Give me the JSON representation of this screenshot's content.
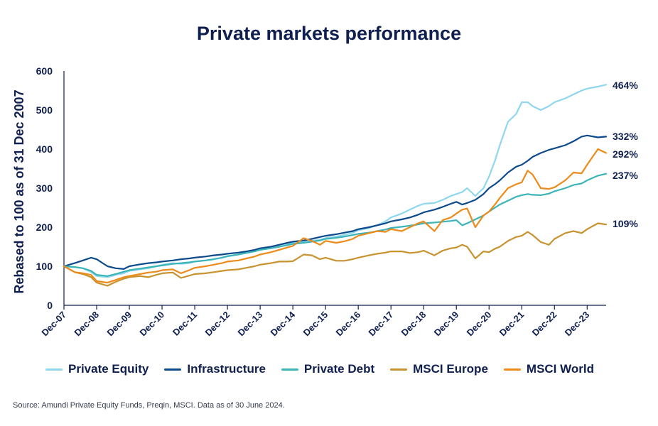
{
  "title": "Private markets performance",
  "source": "Source: Amundi Private Equity Funds, Preqin, MSCI. Data as of 30 June 2024.",
  "chart_data": {
    "type": "line",
    "title": "Private markets performance",
    "xlabel": "",
    "ylabel": "Rebased to 100 as of 31 Dec 2007",
    "ylim": [
      0,
      600
    ],
    "yticks": [
      "0",
      "100",
      "200",
      "300",
      "400",
      "500",
      "600"
    ],
    "x_start": 2007.92,
    "x_end": 2024.5,
    "x_ticks": [
      {
        "label": "Dec-07",
        "x": 2007.92
      },
      {
        "label": "Dec-08",
        "x": 2008.92
      },
      {
        "label": "Dec-09",
        "x": 2009.92
      },
      {
        "label": "Dec-10",
        "x": 2010.92
      },
      {
        "label": "Dec-11",
        "x": 2011.92
      },
      {
        "label": "Dec-12",
        "x": 2012.92
      },
      {
        "label": "Dec-13",
        "x": 2013.92
      },
      {
        "label": "Dec-14",
        "x": 2014.92
      },
      {
        "label": "Dec-15",
        "x": 2015.92
      },
      {
        "label": "Dec-16",
        "x": 2016.92
      },
      {
        "label": "Dec-17",
        "x": 2017.92
      },
      {
        "label": "Dec-18",
        "x": 2018.92
      },
      {
        "label": "Dec-19",
        "x": 2019.92
      },
      {
        "label": "Dec-20",
        "x": 2020.92
      },
      {
        "label": "Dec-21",
        "x": 2021.92
      },
      {
        "label": "Dec-22",
        "x": 2022.92
      },
      {
        "label": "Dec-23",
        "x": 2023.92
      }
    ],
    "series": [
      {
        "name": "Private Equity",
        "color": "#8fd6ee",
        "end_label": "464%",
        "x": [
          2007.92,
          2008.25,
          2008.5,
          2008.75,
          2008.92,
          2009.25,
          2009.5,
          2009.75,
          2009.92,
          2010.25,
          2010.5,
          2010.75,
          2010.92,
          2011.25,
          2011.5,
          2011.75,
          2011.92,
          2012.25,
          2012.5,
          2012.75,
          2012.92,
          2013.25,
          2013.5,
          2013.75,
          2013.92,
          2014.25,
          2014.5,
          2014.75,
          2014.92,
          2015.25,
          2015.5,
          2015.75,
          2015.92,
          2016.25,
          2016.5,
          2016.75,
          2016.92,
          2017.25,
          2017.5,
          2017.75,
          2017.92,
          2018.25,
          2018.5,
          2018.75,
          2018.92,
          2019.25,
          2019.5,
          2019.75,
          2019.92,
          2020.1,
          2020.25,
          2020.5,
          2020.75,
          2020.92,
          2021.1,
          2021.25,
          2021.5,
          2021.75,
          2021.92,
          2022.1,
          2022.25,
          2022.5,
          2022.75,
          2022.92,
          2023.25,
          2023.5,
          2023.75,
          2023.92,
          2024.25,
          2024.5
        ],
        "values": [
          100,
          98,
          95,
          85,
          75,
          72,
          78,
          82,
          88,
          92,
          95,
          100,
          104,
          108,
          106,
          108,
          112,
          115,
          118,
          122,
          125,
          130,
          135,
          140,
          145,
          150,
          155,
          158,
          160,
          162,
          165,
          168,
          172,
          176,
          180,
          186,
          192,
          198,
          205,
          215,
          225,
          235,
          245,
          255,
          260,
          262,
          270,
          280,
          285,
          290,
          300,
          280,
          300,
          330,
          370,
          410,
          470,
          490,
          520,
          520,
          510,
          500,
          510,
          520,
          530,
          540,
          550,
          555,
          560,
          565
        ],
        "values_note": "Rebased index, read from chart"
      },
      {
        "name": "Infrastructure",
        "color": "#0d4a8c",
        "end_label": "332%",
        "x": [
          2007.92,
          2008.25,
          2008.5,
          2008.75,
          2008.92,
          2009.25,
          2009.5,
          2009.75,
          2009.92,
          2010.25,
          2010.5,
          2010.75,
          2010.92,
          2011.25,
          2011.5,
          2011.75,
          2011.92,
          2012.25,
          2012.5,
          2012.75,
          2012.92,
          2013.25,
          2013.5,
          2013.75,
          2013.92,
          2014.25,
          2014.5,
          2014.75,
          2014.92,
          2015.25,
          2015.5,
          2015.75,
          2015.92,
          2016.25,
          2016.5,
          2016.75,
          2016.92,
          2017.25,
          2017.5,
          2017.75,
          2017.92,
          2018.25,
          2018.5,
          2018.75,
          2018.92,
          2019.25,
          2019.5,
          2019.75,
          2019.92,
          2020.1,
          2020.25,
          2020.5,
          2020.75,
          2020.92,
          2021.1,
          2021.25,
          2021.5,
          2021.75,
          2021.92,
          2022.1,
          2022.25,
          2022.5,
          2022.75,
          2022.92,
          2023.25,
          2023.5,
          2023.75,
          2023.92,
          2024.25,
          2024.5
        ],
        "values": [
          100,
          108,
          115,
          122,
          118,
          100,
          95,
          93,
          100,
          105,
          108,
          110,
          112,
          115,
          118,
          120,
          122,
          125,
          128,
          130,
          132,
          135,
          138,
          142,
          146,
          150,
          155,
          160,
          163,
          166,
          170,
          175,
          178,
          182,
          186,
          190,
          195,
          200,
          205,
          210,
          215,
          220,
          225,
          232,
          238,
          245,
          252,
          260,
          265,
          258,
          262,
          270,
          285,
          300,
          310,
          320,
          340,
          355,
          360,
          370,
          380,
          390,
          398,
          402,
          410,
          420,
          432,
          435,
          430,
          432
        ],
        "values_note": "Rebased index, read from chart"
      },
      {
        "name": "Private Debt",
        "color": "#3bb4b8",
        "end_label": "237%",
        "x": [
          2007.92,
          2008.25,
          2008.5,
          2008.75,
          2008.92,
          2009.25,
          2009.5,
          2009.75,
          2009.92,
          2010.25,
          2010.5,
          2010.75,
          2010.92,
          2011.25,
          2011.5,
          2011.75,
          2011.92,
          2012.25,
          2012.5,
          2012.75,
          2012.92,
          2013.25,
          2013.5,
          2013.75,
          2013.92,
          2014.25,
          2014.5,
          2014.75,
          2014.92,
          2015.25,
          2015.5,
          2015.75,
          2015.92,
          2016.25,
          2016.5,
          2016.75,
          2016.92,
          2017.25,
          2017.5,
          2017.75,
          2017.92,
          2018.25,
          2018.5,
          2018.75,
          2018.92,
          2019.25,
          2019.5,
          2019.75,
          2019.92,
          2020.1,
          2020.25,
          2020.5,
          2020.75,
          2020.92,
          2021.1,
          2021.25,
          2021.5,
          2021.75,
          2021.92,
          2022.1,
          2022.25,
          2022.5,
          2022.75,
          2022.92,
          2023.25,
          2023.5,
          2023.75,
          2023.92,
          2024.25,
          2024.5
        ],
        "values": [
          100,
          98,
          95,
          88,
          78,
          75,
          80,
          86,
          90,
          94,
          97,
          100,
          102,
          106,
          108,
          110,
          112,
          115,
          118,
          122,
          126,
          130,
          134,
          138,
          142,
          146,
          150,
          154,
          157,
          160,
          163,
          166,
          170,
          173,
          176,
          180,
          183,
          186,
          190,
          194,
          198,
          201,
          204,
          207,
          210,
          212,
          214,
          216,
          218,
          205,
          210,
          220,
          230,
          240,
          250,
          258,
          268,
          278,
          282,
          285,
          283,
          282,
          286,
          292,
          300,
          308,
          312,
          320,
          332,
          337
        ],
        "values_note": "Rebased index, read from chart"
      },
      {
        "name": "MSCI Europe",
        "color": "#c8922e",
        "end_label": "109%",
        "x": [
          2007.92,
          2008.25,
          2008.5,
          2008.75,
          2008.92,
          2009.25,
          2009.5,
          2009.75,
          2009.92,
          2010.25,
          2010.5,
          2010.75,
          2010.92,
          2011.25,
          2011.5,
          2011.75,
          2011.92,
          2012.25,
          2012.5,
          2012.75,
          2012.92,
          2013.25,
          2013.5,
          2013.75,
          2013.92,
          2014.25,
          2014.5,
          2014.75,
          2014.92,
          2015.25,
          2015.5,
          2015.75,
          2015.92,
          2016.25,
          2016.5,
          2016.75,
          2016.92,
          2017.25,
          2017.5,
          2017.75,
          2017.92,
          2018.25,
          2018.5,
          2018.75,
          2018.92,
          2019.25,
          2019.5,
          2019.75,
          2019.92,
          2020.1,
          2020.25,
          2020.5,
          2020.75,
          2020.92,
          2021.1,
          2021.25,
          2021.5,
          2021.75,
          2021.92,
          2022.1,
          2022.25,
          2022.5,
          2022.75,
          2022.92,
          2023.25,
          2023.5,
          2023.75,
          2023.92,
          2024.25,
          2024.5
        ],
        "values": [
          100,
          85,
          80,
          72,
          58,
          50,
          60,
          68,
          72,
          75,
          72,
          78,
          82,
          84,
          70,
          76,
          80,
          82,
          85,
          88,
          90,
          92,
          96,
          100,
          104,
          108,
          112,
          112,
          113,
          130,
          128,
          118,
          122,
          114,
          114,
          118,
          122,
          128,
          132,
          135,
          138,
          138,
          134,
          136,
          140,
          128,
          140,
          146,
          148,
          155,
          150,
          120,
          138,
          136,
          145,
          150,
          165,
          175,
          178,
          188,
          180,
          162,
          155,
          170,
          185,
          190,
          185,
          195,
          210,
          207
        ],
        "values_note": "Rebased index, read from chart"
      },
      {
        "name": "MSCI World",
        "color": "#ec8a1a",
        "end_label": "292%",
        "x": [
          2007.92,
          2008.25,
          2008.5,
          2008.75,
          2008.92,
          2009.25,
          2009.5,
          2009.75,
          2009.92,
          2010.25,
          2010.5,
          2010.75,
          2010.92,
          2011.25,
          2011.5,
          2011.75,
          2011.92,
          2012.25,
          2012.5,
          2012.75,
          2012.92,
          2013.25,
          2013.5,
          2013.75,
          2013.92,
          2014.25,
          2014.5,
          2014.75,
          2014.92,
          2015.25,
          2015.5,
          2015.75,
          2015.92,
          2016.25,
          2016.5,
          2016.75,
          2016.92,
          2017.25,
          2017.5,
          2017.75,
          2017.92,
          2018.25,
          2018.5,
          2018.75,
          2018.92,
          2019.25,
          2019.5,
          2019.75,
          2019.92,
          2020.1,
          2020.25,
          2020.5,
          2020.75,
          2020.92,
          2021.1,
          2021.25,
          2021.5,
          2021.75,
          2021.92,
          2022.1,
          2022.25,
          2022.5,
          2022.75,
          2022.92,
          2023.25,
          2023.5,
          2023.75,
          2023.92,
          2024.25,
          2024.5
        ],
        "values": [
          100,
          85,
          82,
          78,
          62,
          58,
          65,
          72,
          75,
          80,
          84,
          86,
          90,
          92,
          82,
          90,
          96,
          100,
          104,
          108,
          112,
          115,
          120,
          125,
          130,
          136,
          142,
          148,
          152,
          172,
          165,
          155,
          165,
          160,
          164,
          170,
          178,
          185,
          190,
          188,
          195,
          190,
          200,
          210,
          215,
          190,
          218,
          225,
          235,
          245,
          248,
          200,
          230,
          240,
          258,
          275,
          300,
          310,
          315,
          345,
          335,
          300,
          298,
          302,
          320,
          340,
          338,
          360,
          400,
          390
        ],
        "values_note": "Rebased index, read from chart"
      }
    ],
    "legend_position": "bottom"
  }
}
